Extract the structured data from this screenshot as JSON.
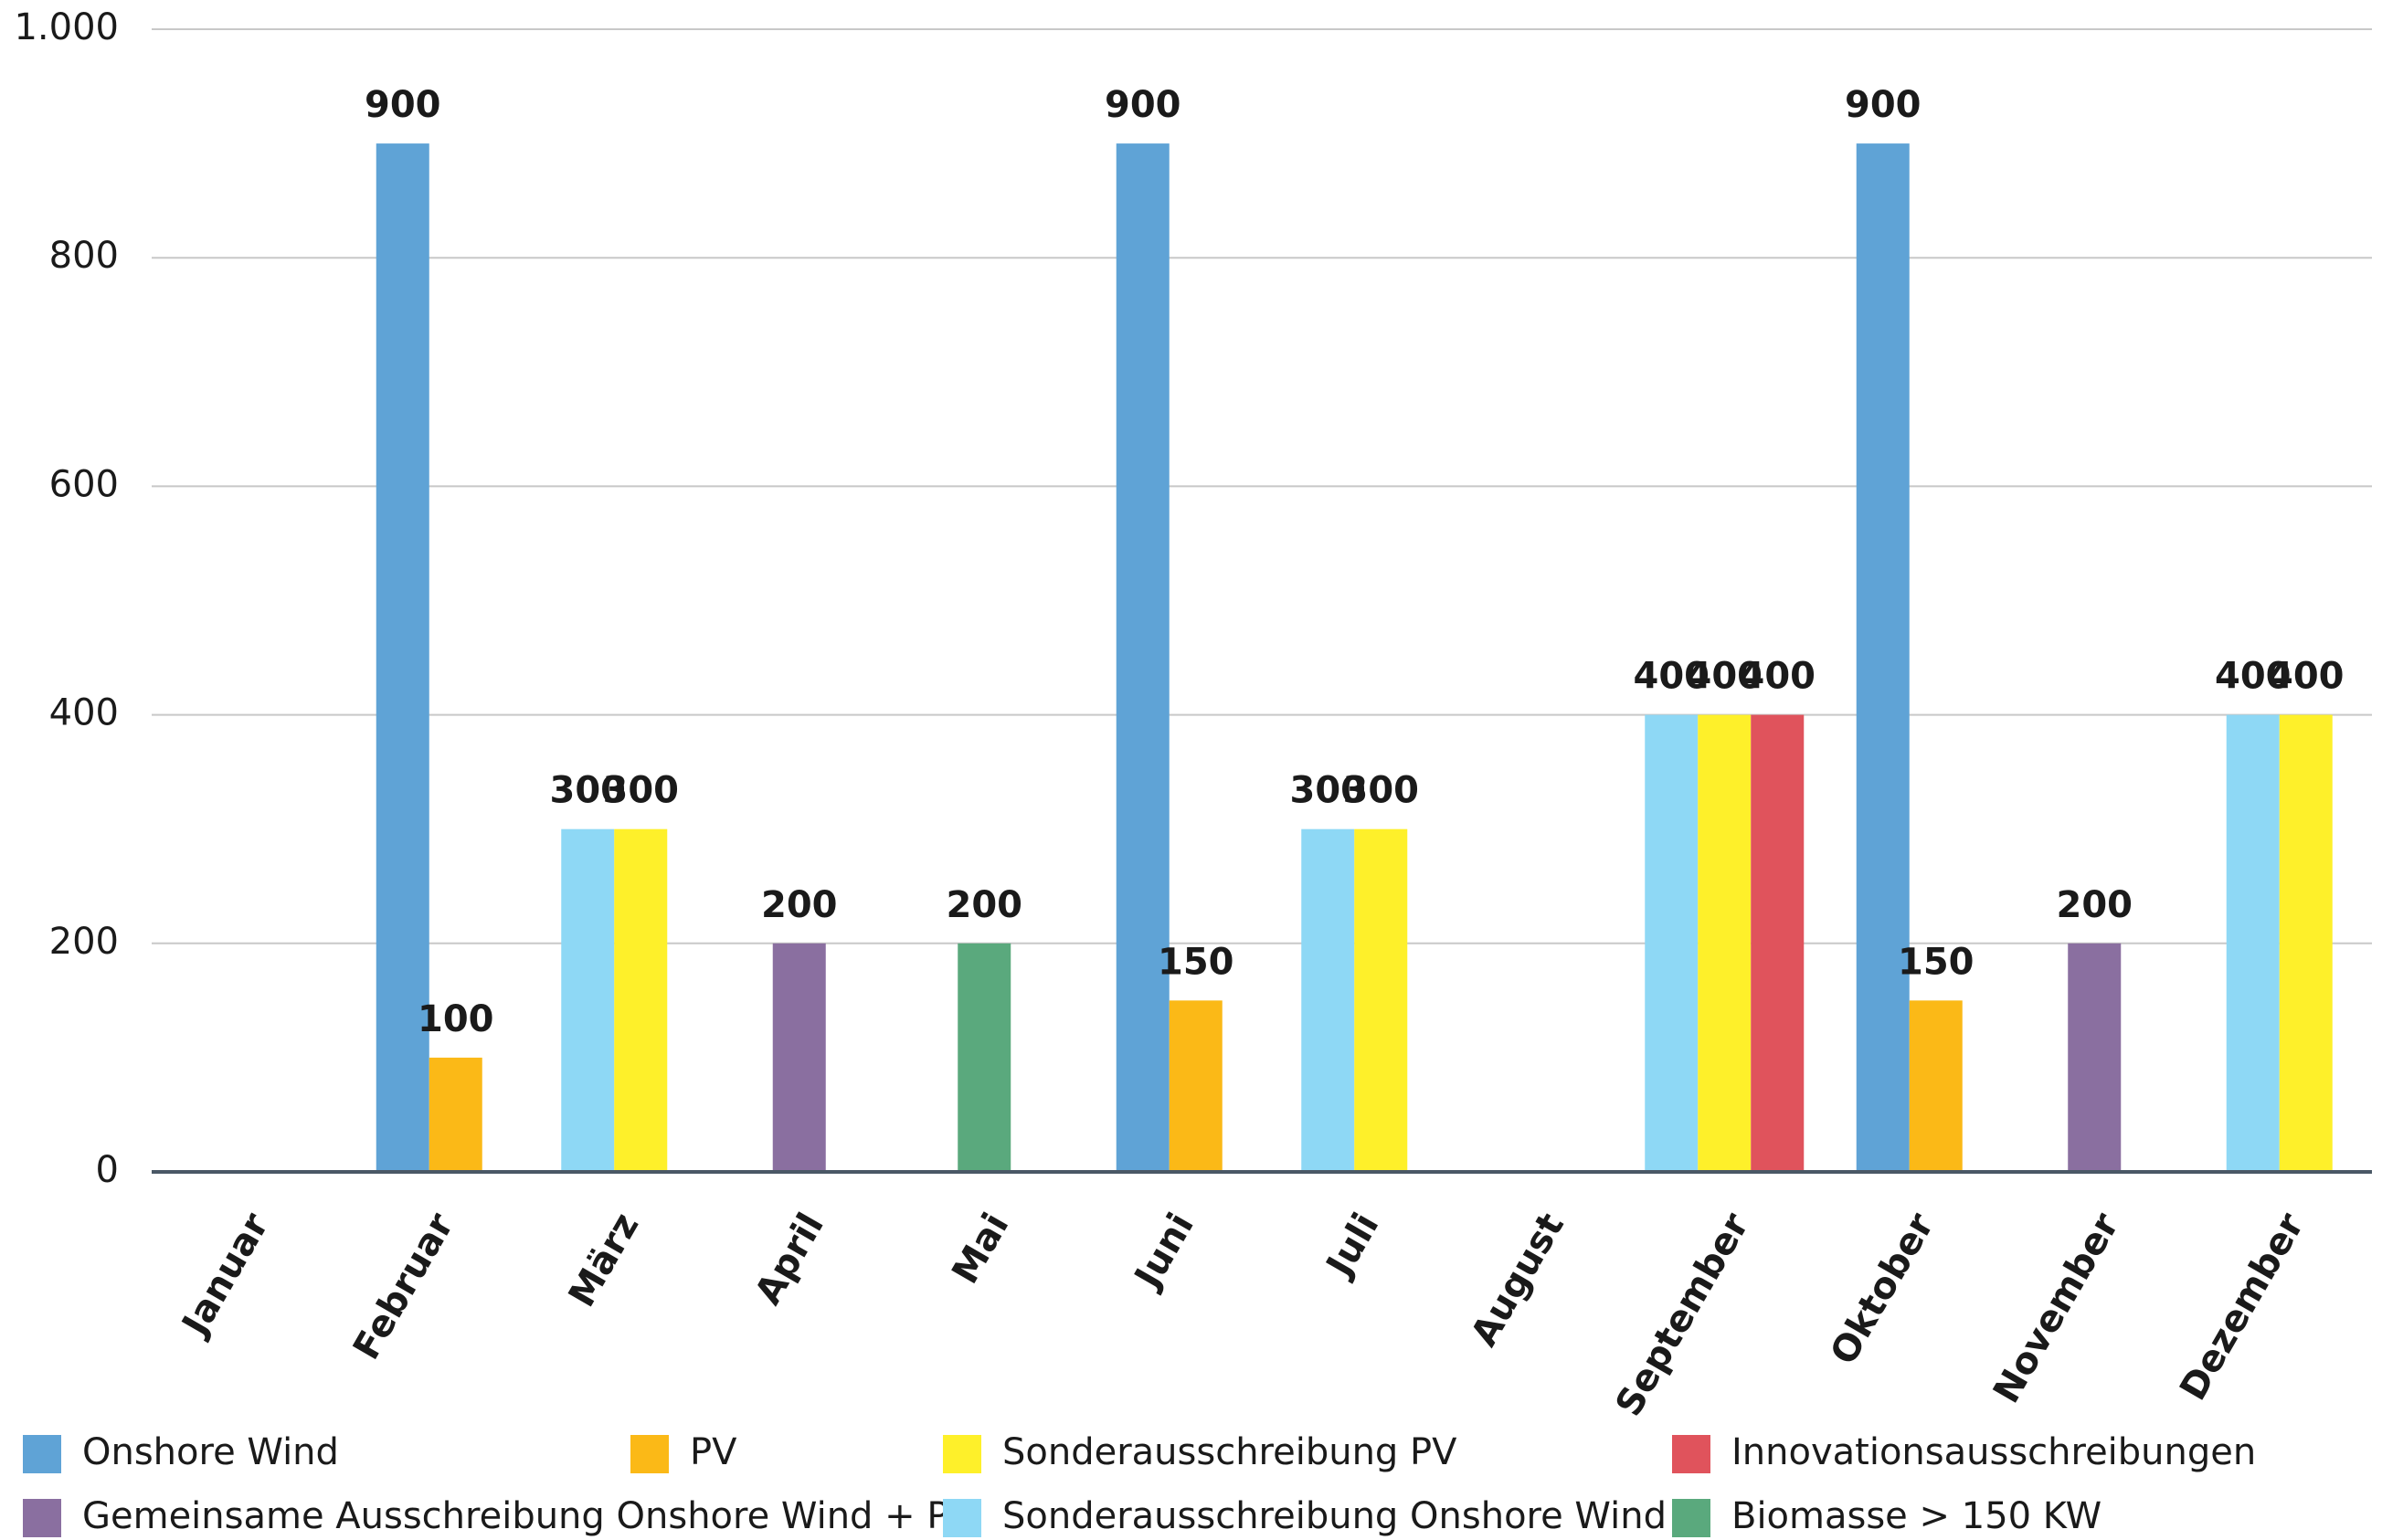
{
  "chart_data": {
    "type": "bar",
    "categories": [
      "Januar",
      "Februar",
      "März",
      "April",
      "Mai",
      "Juni",
      "Juli",
      "August",
      "September",
      "Oktober",
      "November",
      "Dezember"
    ],
    "series": [
      {
        "name": "Onshore Wind",
        "color": "#5fa3d6",
        "values": [
          null,
          900,
          null,
          null,
          null,
          900,
          null,
          null,
          null,
          900,
          null,
          null
        ]
      },
      {
        "name": "PV",
        "color": "#fbb917",
        "values": [
          null,
          100,
          null,
          null,
          null,
          150,
          null,
          null,
          null,
          150,
          null,
          null
        ]
      },
      {
        "name": "Sonderausschreibung PV",
        "color": "#fef02a",
        "values": [
          null,
          null,
          300,
          null,
          null,
          null,
          300,
          null,
          400,
          null,
          null,
          400
        ]
      },
      {
        "name": "Innovationsausschreibungen",
        "color": "#e0535c",
        "values": [
          null,
          null,
          null,
          null,
          null,
          null,
          null,
          null,
          400,
          null,
          null,
          null
        ]
      },
      {
        "name": "Gemeinsame Ausschreibung Onshore Wind + PV",
        "color": "#8a6fa0",
        "values": [
          null,
          null,
          null,
          200,
          null,
          null,
          null,
          null,
          null,
          null,
          200,
          null
        ]
      },
      {
        "name": "Sonderausschreibung Onshore Wind",
        "color": "#8ed8f5",
        "values": [
          null,
          null,
          300,
          null,
          null,
          null,
          300,
          null,
          400,
          null,
          null,
          400
        ]
      },
      {
        "name": "Biomasse > 150 KW",
        "color": "#5aa97d",
        "values": [
          null,
          null,
          null,
          null,
          200,
          null,
          null,
          null,
          null,
          null,
          null,
          null
        ]
      }
    ],
    "ylim": [
      0,
      1000
    ],
    "yticks": [
      0,
      200,
      400,
      600,
      800,
      {
        "value": 1000,
        "label": "1.000"
      }
    ],
    "grid": true
  }
}
